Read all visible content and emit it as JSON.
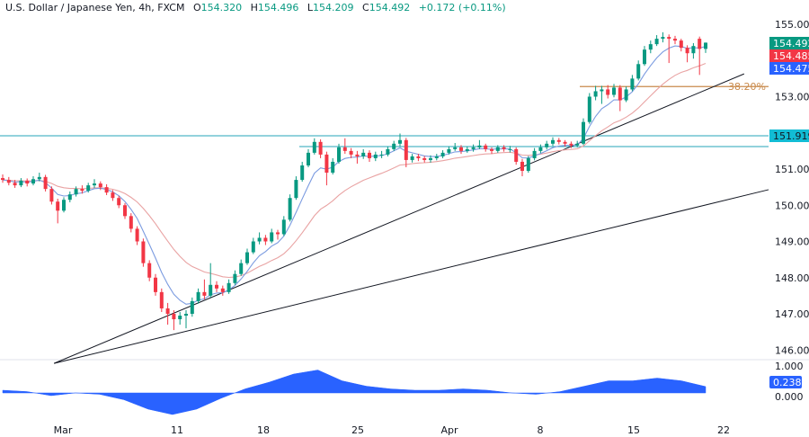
{
  "header": {
    "title": "U.S. Dollar / Japanese Yen, 4h, FXCM",
    "open_label": "O",
    "open": "154.320",
    "high_label": "H",
    "high": "154.496",
    "low_label": "L",
    "low": "154.209",
    "close_label": "C",
    "close": "154.492",
    "change": "+0.172 (+0.11%)"
  },
  "colors": {
    "up": "#089981",
    "down": "#f23645",
    "fast_ma": "#7b9be0",
    "slow_ma": "#e9a3a3",
    "level": "#26a6b8",
    "fib": "#c98a4b",
    "trendline": "#131722",
    "oscillator": "#2962ff"
  },
  "chart_data": {
    "type": "candlestick",
    "symbol": "USDJPY",
    "timeframe": "4h",
    "ylim": [
      146,
      155
    ],
    "y_ticks": [
      "146.000",
      "147.000",
      "148.000",
      "149.000",
      "150.000",
      "151.000",
      "153.000",
      "155.000"
    ],
    "x_tick_labels": [
      "Mar",
      "11",
      "18",
      "25",
      "Apr",
      "8",
      "15",
      "22"
    ],
    "candles": [
      [
        150.75,
        150.85,
        150.62,
        150.7
      ],
      [
        150.7,
        150.78,
        150.55,
        150.62
      ],
      [
        150.62,
        150.7,
        150.48,
        150.55
      ],
      [
        150.55,
        150.75,
        150.5,
        150.68
      ],
      [
        150.68,
        150.74,
        150.52,
        150.6
      ],
      [
        150.6,
        150.8,
        150.55,
        150.72
      ],
      [
        150.72,
        150.9,
        150.66,
        150.78
      ],
      [
        150.78,
        150.84,
        150.38,
        150.45
      ],
      [
        150.45,
        150.52,
        150.02,
        150.1
      ],
      [
        150.1,
        150.18,
        149.5,
        149.85
      ],
      [
        149.85,
        150.22,
        149.8,
        150.15
      ],
      [
        150.15,
        150.38,
        150.08,
        150.3
      ],
      [
        150.3,
        150.52,
        150.24,
        150.45
      ],
      [
        150.45,
        150.55,
        150.32,
        150.4
      ],
      [
        150.4,
        150.62,
        150.35,
        150.55
      ],
      [
        150.55,
        150.72,
        150.48,
        150.6
      ],
      [
        150.6,
        150.66,
        150.42,
        150.5
      ],
      [
        150.5,
        150.58,
        150.28,
        150.35
      ],
      [
        150.35,
        150.42,
        150.12,
        150.2
      ],
      [
        150.2,
        150.26,
        149.92,
        150.0
      ],
      [
        150.0,
        150.06,
        149.62,
        149.7
      ],
      [
        149.7,
        149.78,
        149.25,
        149.35
      ],
      [
        149.35,
        149.42,
        148.9,
        149.0
      ],
      [
        149.0,
        149.08,
        148.3,
        148.4
      ],
      [
        148.4,
        148.48,
        147.9,
        148.0
      ],
      [
        148.0,
        148.1,
        147.5,
        147.6
      ],
      [
        147.6,
        147.7,
        147.05,
        147.15
      ],
      [
        147.15,
        147.3,
        146.7,
        147.0
      ],
      [
        147.0,
        147.1,
        146.55,
        146.85
      ],
      [
        146.85,
        147.05,
        146.7,
        146.95
      ],
      [
        146.95,
        147.1,
        146.6,
        147.0
      ],
      [
        147.0,
        147.45,
        146.92,
        147.35
      ],
      [
        147.35,
        147.7,
        147.28,
        147.6
      ],
      [
        147.6,
        147.95,
        147.4,
        147.5
      ],
      [
        147.5,
        148.4,
        147.45,
        147.8
      ],
      [
        147.8,
        147.9,
        147.6,
        147.7
      ],
      [
        147.7,
        147.78,
        147.5,
        147.6
      ],
      [
        147.6,
        147.95,
        147.55,
        147.85
      ],
      [
        147.85,
        148.2,
        147.8,
        148.1
      ],
      [
        148.1,
        148.5,
        148.05,
        148.4
      ],
      [
        148.4,
        148.8,
        148.35,
        148.7
      ],
      [
        148.7,
        149.1,
        148.65,
        149.0
      ],
      [
        149.0,
        149.25,
        148.92,
        149.1
      ],
      [
        149.1,
        149.18,
        148.9,
        149.0
      ],
      [
        149.0,
        149.35,
        148.95,
        149.25
      ],
      [
        149.25,
        149.32,
        149.05,
        149.2
      ],
      [
        149.2,
        149.7,
        149.15,
        149.6
      ],
      [
        149.6,
        150.3,
        149.55,
        150.2
      ],
      [
        150.2,
        150.8,
        150.15,
        150.7
      ],
      [
        150.7,
        151.2,
        150.65,
        151.1
      ],
      [
        151.1,
        151.55,
        151.05,
        151.45
      ],
      [
        151.45,
        151.85,
        151.4,
        151.75
      ],
      [
        151.75,
        151.82,
        151.3,
        151.4
      ],
      [
        151.4,
        151.48,
        150.55,
        150.9
      ],
      [
        150.9,
        151.3,
        150.85,
        151.2
      ],
      [
        151.2,
        151.7,
        151.15,
        151.6
      ],
      [
        151.6,
        151.85,
        151.42,
        151.5
      ],
      [
        151.5,
        151.58,
        151.3,
        151.4
      ],
      [
        151.4,
        151.5,
        151.15,
        151.35
      ],
      [
        151.35,
        151.55,
        151.28,
        151.45
      ],
      [
        151.45,
        151.52,
        151.2,
        151.3
      ],
      [
        151.3,
        151.48,
        151.22,
        151.4
      ],
      [
        151.4,
        151.5,
        151.3,
        151.4
      ],
      [
        151.4,
        151.62,
        151.35,
        151.55
      ],
      [
        151.55,
        151.78,
        151.5,
        151.7
      ],
      [
        151.7,
        151.98,
        151.62,
        151.8
      ],
      [
        151.8,
        151.86,
        151.05,
        151.25
      ],
      [
        151.25,
        151.42,
        151.18,
        151.35
      ],
      [
        151.35,
        151.42,
        151.22,
        151.3
      ],
      [
        151.3,
        151.36,
        151.18,
        151.25
      ],
      [
        151.25,
        151.38,
        151.18,
        151.3
      ],
      [
        151.3,
        151.42,
        151.24,
        151.35
      ],
      [
        151.35,
        151.52,
        151.3,
        151.45
      ],
      [
        151.45,
        151.62,
        151.4,
        151.55
      ],
      [
        151.55,
        151.72,
        151.5,
        151.6
      ],
      [
        151.6,
        151.66,
        151.42,
        151.5
      ],
      [
        151.5,
        151.62,
        151.45,
        151.55
      ],
      [
        151.55,
        151.68,
        151.48,
        151.6
      ],
      [
        151.6,
        151.8,
        151.55,
        151.65
      ],
      [
        151.65,
        151.7,
        151.48,
        151.55
      ],
      [
        151.55,
        151.6,
        151.42,
        151.5
      ],
      [
        151.5,
        151.66,
        151.45,
        151.6
      ],
      [
        151.6,
        151.66,
        151.48,
        151.55
      ],
      [
        151.55,
        151.64,
        151.46,
        151.55
      ],
      [
        151.55,
        151.6,
        151.12,
        151.2
      ],
      [
        151.2,
        151.28,
        150.8,
        150.95
      ],
      [
        150.95,
        151.36,
        150.9,
        151.3
      ],
      [
        151.3,
        151.58,
        151.24,
        151.5
      ],
      [
        151.5,
        151.68,
        151.44,
        151.6
      ],
      [
        151.6,
        151.78,
        151.54,
        151.7
      ],
      [
        151.7,
        151.88,
        151.64,
        151.8
      ],
      [
        151.8,
        151.86,
        151.68,
        151.75
      ],
      [
        151.75,
        151.8,
        151.62,
        151.7
      ],
      [
        151.7,
        151.76,
        151.58,
        151.65
      ],
      [
        151.65,
        151.78,
        151.6,
        151.7
      ],
      [
        151.7,
        152.4,
        151.66,
        152.3
      ],
      [
        152.3,
        153.1,
        152.25,
        153.0
      ],
      [
        153.0,
        153.3,
        152.9,
        153.15
      ],
      [
        153.15,
        153.3,
        152.8,
        153.2
      ],
      [
        153.2,
        153.32,
        152.95,
        153.05
      ],
      [
        153.05,
        153.35,
        152.98,
        153.25
      ],
      [
        153.25,
        153.32,
        152.6,
        152.9
      ],
      [
        152.9,
        153.28,
        152.85,
        153.2
      ],
      [
        153.2,
        153.6,
        153.15,
        153.5
      ],
      [
        153.5,
        154.0,
        153.45,
        153.9
      ],
      [
        153.9,
        154.4,
        153.85,
        154.3
      ],
      [
        154.3,
        154.55,
        154.2,
        154.45
      ],
      [
        154.45,
        154.7,
        154.4,
        154.6
      ],
      [
        154.6,
        154.78,
        154.5,
        154.65
      ],
      [
        154.65,
        154.72,
        153.93,
        154.6
      ],
      [
        154.6,
        154.68,
        154.45,
        154.55
      ],
      [
        154.55,
        154.6,
        154.25,
        154.35
      ],
      [
        154.35,
        154.42,
        153.95,
        154.2
      ],
      [
        154.2,
        154.48,
        154.05,
        154.4
      ],
      [
        154.6,
        154.66,
        153.6,
        154.32
      ],
      [
        154.32,
        154.496,
        154.209,
        154.492
      ]
    ],
    "price_badges": [
      {
        "value": "154.492",
        "color": "#089981"
      },
      {
        "value": "154.485",
        "color": "#f23645"
      },
      {
        "value": "154.475",
        "color": "#2962ff"
      }
    ],
    "horizontal_levels": [
      {
        "price": 151.919,
        "label": "151.919",
        "color": "#26a6b8"
      },
      {
        "price": 151.62,
        "color": "#26a6b8"
      }
    ],
    "fib_level": {
      "price": 153.28,
      "label": "38.20%",
      "color": "#c98a4b"
    },
    "trendlines": [
      {
        "from": [
          8.4,
          145.63
        ],
        "to": [
          121.3,
          153.63
        ]
      },
      {
        "from": [
          8.4,
          145.63
        ],
        "to": [
          125.3,
          150.43
        ]
      }
    ],
    "oscillator": {
      "ylim": [
        -1,
        1
      ],
      "y_ticks": [
        "1.000",
        "0.000"
      ],
      "current": "0.238",
      "values": [
        0.1,
        0.05,
        -0.1,
        0.0,
        -0.05,
        -0.25,
        -0.6,
        -0.8,
        -0.6,
        -0.2,
        0.15,
        0.4,
        0.7,
        0.85,
        0.45,
        0.25,
        0.15,
        0.1,
        0.1,
        0.15,
        0.1,
        0.0,
        -0.05,
        0.05,
        0.25,
        0.45,
        0.45,
        0.55,
        0.45,
        0.238
      ]
    }
  }
}
